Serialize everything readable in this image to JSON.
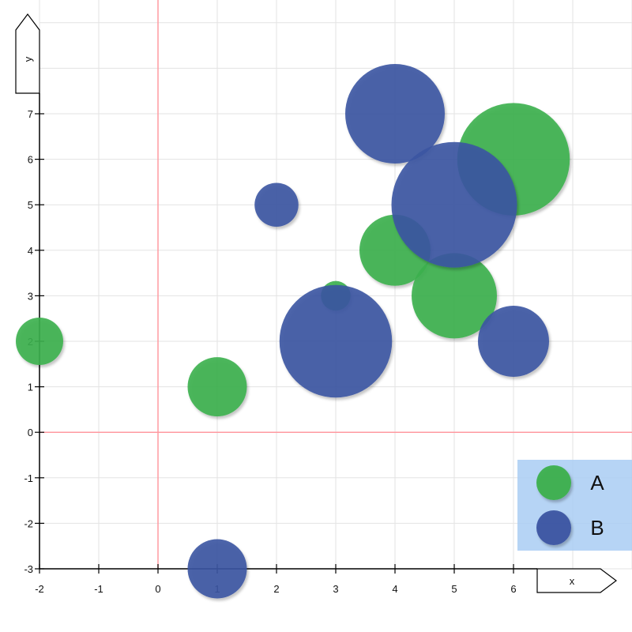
{
  "chart_data": {
    "type": "scatter",
    "xlabel": "x",
    "ylabel": "y",
    "xlim": [
      -2,
      8
    ],
    "ylim": [
      -3,
      9.5
    ],
    "x_ticks": [
      -2,
      -1,
      0,
      1,
      2,
      3,
      4,
      5,
      6
    ],
    "y_ticks": [
      -3,
      -2,
      -1,
      0,
      1,
      2,
      3,
      4,
      5,
      6,
      7
    ],
    "grid": true,
    "legend_position": "bottom-right",
    "series": [
      {
        "name": "A",
        "color": "#3cb04e",
        "points": [
          {
            "x": -2,
            "y": 2,
            "size": 0.4
          },
          {
            "x": 1,
            "y": 1,
            "size": 0.5
          },
          {
            "x": 3,
            "y": 3,
            "size": 0.25
          },
          {
            "x": 4,
            "y": 4,
            "size": 0.6
          },
          {
            "x": 5,
            "y": 3,
            "size": 0.72
          },
          {
            "x": 6,
            "y": 6,
            "size": 0.95
          }
        ]
      },
      {
        "name": "B",
        "color": "#3b54a2",
        "points": [
          {
            "x": 1,
            "y": -3,
            "size": 0.5
          },
          {
            "x": 2,
            "y": 5,
            "size": 0.37
          },
          {
            "x": 3,
            "y": 2,
            "size": 0.95
          },
          {
            "x": 4,
            "y": 7,
            "size": 0.84
          },
          {
            "x": 5,
            "y": 5,
            "size": 1.06
          },
          {
            "x": 6,
            "y": 2,
            "size": 0.6
          }
        ]
      }
    ],
    "legend": [
      {
        "label": "A",
        "color": "#3cb04e"
      },
      {
        "label": "B",
        "color": "#3b54a2"
      }
    ],
    "zero_line_color": "#ff9aa0",
    "legend_background": "#a9cdf3"
  }
}
